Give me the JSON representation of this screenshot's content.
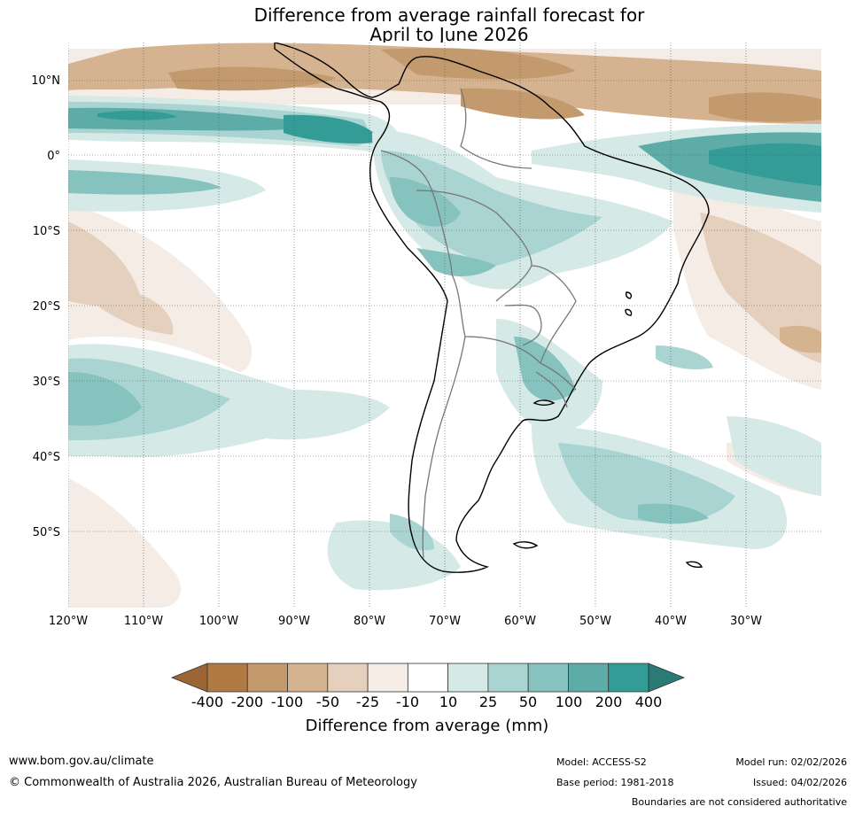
{
  "title": {
    "line1": "Difference from average rainfall forecast for",
    "line2": "April to June 2026"
  },
  "map": {
    "latitude_labels": [
      "10°N",
      "0°",
      "10°S",
      "20°S",
      "30°S",
      "40°S",
      "50°S"
    ],
    "longitude_labels": [
      "120°W",
      "110°W",
      "100°W",
      "90°W",
      "80°W",
      "70°W",
      "60°W",
      "50°W",
      "40°W",
      "30°W"
    ]
  },
  "colorbar": {
    "title": "Difference from average (mm)",
    "tick_labels": [
      "-400",
      "-200",
      "-100",
      "-50",
      "-25",
      "-10",
      "10",
      "25",
      "50",
      "100",
      "200",
      "400"
    ],
    "colors": [
      "#9c6535",
      "#b07a42",
      "#c39a6d",
      "#d5b391",
      "#e5d0bd",
      "#f4ece5",
      "#ffffff",
      "#d5e9e6",
      "#aad4d1",
      "#86c2be",
      "#5eaca8",
      "#339c97",
      "#2a7a76"
    ]
  },
  "footer": {
    "url": "www.bom.gov.au/climate",
    "copyright": "© Commonwealth of Australia 2026, Australian Bureau of Meteorology",
    "model": "Model: ACCESS-S2",
    "base_period": "Base period: 1981-2018",
    "model_run": "Model run: 02/02/2026",
    "issued": "Issued: 04/02/2026",
    "disclaimer": "Boundaries are not considered authoritative"
  }
}
